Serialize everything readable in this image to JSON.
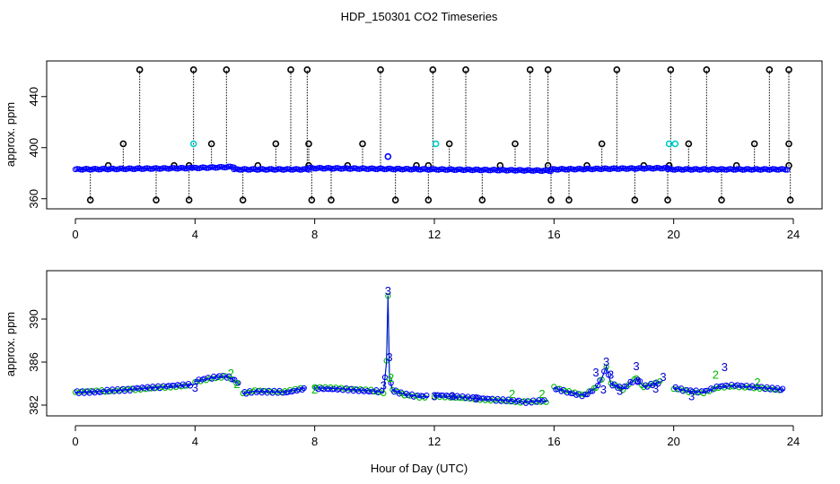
{
  "chart_data": {
    "title": "HDP_150301  CO2 Timeseries",
    "xlabel": "Hour of Day (UTC)",
    "colors": {
      "base": "#000000",
      "median": "#0000ff",
      "flag1": "#00cccc",
      "flag2": "#00bb00",
      "flag3": "#0000cc"
    },
    "panels": [
      {
        "type": "scatter",
        "ylabel": "approx. ppm",
        "xlim": [
          0,
          24
        ],
        "ylim": [
          357,
          463
        ],
        "xticks": [
          0,
          4,
          8,
          12,
          16,
          20,
          24
        ],
        "yticks": [
          360,
          400,
          440
        ],
        "baseline_segments": [
          {
            "x0": 0.0,
            "x1": 3.9,
            "y0": 383,
            "y1": 384
          },
          {
            "x0": 3.9,
            "x1": 5.3,
            "y0": 384,
            "y1": 385
          },
          {
            "x0": 5.3,
            "x1": 7.8,
            "y0": 383,
            "y1": 383
          },
          {
            "x0": 7.8,
            "x1": 11.9,
            "y0": 384,
            "y1": 383
          },
          {
            "x0": 11.9,
            "x1": 15.9,
            "y0": 383,
            "y1": 382
          },
          {
            "x0": 15.9,
            "x1": 19.8,
            "y0": 383,
            "y1": 384
          },
          {
            "x0": 19.8,
            "x1": 23.8,
            "y0": 383,
            "y1": 383
          }
        ],
        "spikes": [
          {
            "x": 2.15,
            "y": 461
          },
          {
            "x": 3.95,
            "y": 461
          },
          {
            "x": 5.05,
            "y": 461
          },
          {
            "x": 7.2,
            "y": 461
          },
          {
            "x": 7.75,
            "y": 461
          },
          {
            "x": 10.2,
            "y": 461
          },
          {
            "x": 11.95,
            "y": 461
          },
          {
            "x": 13.05,
            "y": 461
          },
          {
            "x": 15.2,
            "y": 461
          },
          {
            "x": 15.8,
            "y": 461
          },
          {
            "x": 18.1,
            "y": 461
          },
          {
            "x": 19.9,
            "y": 461
          },
          {
            "x": 21.1,
            "y": 461
          },
          {
            "x": 23.2,
            "y": 461
          },
          {
            "x": 23.85,
            "y": 461
          },
          {
            "x": 1.6,
            "y": 403
          },
          {
            "x": 4.55,
            "y": 403
          },
          {
            "x": 6.7,
            "y": 403
          },
          {
            "x": 7.8,
            "y": 403
          },
          {
            "x": 9.6,
            "y": 403
          },
          {
            "x": 12.5,
            "y": 403
          },
          {
            "x": 14.7,
            "y": 403
          },
          {
            "x": 17.6,
            "y": 403
          },
          {
            "x": 20.5,
            "y": 403
          },
          {
            "x": 22.7,
            "y": 403
          },
          {
            "x": 23.85,
            "y": 403
          },
          {
            "x": 0.5,
            "y": 359
          },
          {
            "x": 2.7,
            "y": 359
          },
          {
            "x": 3.8,
            "y": 359
          },
          {
            "x": 5.6,
            "y": 359
          },
          {
            "x": 7.9,
            "y": 359
          },
          {
            "x": 8.55,
            "y": 359
          },
          {
            "x": 10.7,
            "y": 359
          },
          {
            "x": 11.8,
            "y": 359
          },
          {
            "x": 13.6,
            "y": 359
          },
          {
            "x": 15.9,
            "y": 359
          },
          {
            "x": 16.5,
            "y": 359
          },
          {
            "x": 18.7,
            "y": 359
          },
          {
            "x": 19.8,
            "y": 359
          },
          {
            "x": 21.6,
            "y": 359
          },
          {
            "x": 23.9,
            "y": 359
          },
          {
            "x": 1.1,
            "y": 386
          },
          {
            "x": 3.3,
            "y": 386
          },
          {
            "x": 3.8,
            "y": 386
          },
          {
            "x": 6.1,
            "y": 386
          },
          {
            "x": 7.8,
            "y": 386
          },
          {
            "x": 9.1,
            "y": 386
          },
          {
            "x": 11.4,
            "y": 386
          },
          {
            "x": 11.8,
            "y": 386
          },
          {
            "x": 14.2,
            "y": 386
          },
          {
            "x": 15.8,
            "y": 386
          },
          {
            "x": 17.1,
            "y": 386
          },
          {
            "x": 19.0,
            "y": 386
          },
          {
            "x": 19.85,
            "y": 386
          },
          {
            "x": 22.1,
            "y": 386
          },
          {
            "x": 23.85,
            "y": 386
          }
        ],
        "flagged": [
          {
            "x": 3.95,
            "y": 403
          },
          {
            "x": 12.05,
            "y": 403
          },
          {
            "x": 19.85,
            "y": 403
          },
          {
            "x": 20.05,
            "y": 403
          },
          {
            "x": 10.45,
            "y": 393
          }
        ]
      },
      {
        "type": "line",
        "ylabel": "approx. ppm",
        "xlim": [
          0,
          24
        ],
        "ylim": [
          381.5,
          394
        ],
        "xticks": [
          0,
          4,
          8,
          12,
          16,
          20,
          24
        ],
        "yticks": [
          382,
          386,
          390
        ],
        "segments": [
          {
            "x": [
              0.0,
              1.0,
              2.0,
              3.0,
              3.9
            ],
            "y": [
              383.2,
              383.3,
              383.5,
              383.7,
              383.9
            ]
          },
          {
            "x": [
              4.0,
              4.5,
              5.0,
              5.2,
              5.5
            ],
            "y": [
              384.2,
              384.5,
              384.7,
              384.5,
              383.9
            ]
          },
          {
            "x": [
              5.6,
              6.0,
              7.0,
              7.7
            ],
            "y": [
              383.1,
              383.3,
              383.2,
              383.6
            ]
          },
          {
            "x": [
              8.0,
              9.0,
              10.0,
              10.3,
              10.4,
              10.45,
              10.5,
              10.6,
              11.0,
              11.5,
              11.8
            ],
            "y": [
              383.6,
              383.5,
              383.3,
              383.2,
              386.0,
              392.2,
              384.5,
              383.4,
              383.0,
              382.8,
              382.8
            ]
          },
          {
            "x": [
              12.0,
              13.0,
              14.0,
              15.0,
              15.8
            ],
            "y": [
              382.9,
              382.7,
              382.5,
              382.3,
              382.4
            ]
          },
          {
            "x": [
              16.0,
              16.5,
              17.0,
              17.4,
              17.6,
              17.75,
              17.9,
              18.3,
              18.75,
              19.0,
              19.6
            ],
            "y": [
              383.6,
              383.2,
              382.9,
              383.6,
              384.5,
              385.6,
              384.0,
              383.5,
              384.5,
              383.7,
              384.2
            ]
          },
          {
            "x": [
              20.0,
              20.5,
              21.0,
              21.5,
              22.0,
              22.5,
              23.0,
              23.7
            ],
            "y": [
              383.6,
              383.3,
              383.2,
              383.7,
              383.8,
              383.7,
              383.6,
              383.4
            ]
          }
        ],
        "labels": [
          {
            "x": 10.45,
            "y": 392.6,
            "text": "3"
          },
          {
            "x": 10.5,
            "y": 386.4,
            "text": "3"
          },
          {
            "x": 10.55,
            "y": 384.5,
            "text": "2"
          },
          {
            "x": 10.3,
            "y": 383.8,
            "text": "3"
          },
          {
            "x": 4.0,
            "y": 383.6,
            "text": "3"
          },
          {
            "x": 5.2,
            "y": 384.9,
            "text": "2"
          },
          {
            "x": 5.4,
            "y": 383.9,
            "text": "2"
          },
          {
            "x": 12.0,
            "y": 382.8,
            "text": "3"
          },
          {
            "x": 12.6,
            "y": 382.8,
            "text": "3"
          },
          {
            "x": 13.4,
            "y": 382.6,
            "text": "3"
          },
          {
            "x": 14.6,
            "y": 383.0,
            "text": "2"
          },
          {
            "x": 15.6,
            "y": 383.0,
            "text": "2"
          },
          {
            "x": 17.4,
            "y": 385.0,
            "text": "3"
          },
          {
            "x": 17.75,
            "y": 386.0,
            "text": "3"
          },
          {
            "x": 17.9,
            "y": 384.8,
            "text": "3"
          },
          {
            "x": 17.65,
            "y": 383.4,
            "text": "3"
          },
          {
            "x": 18.2,
            "y": 383.3,
            "text": "3"
          },
          {
            "x": 18.75,
            "y": 385.6,
            "text": "3"
          },
          {
            "x": 18.8,
            "y": 384.2,
            "text": "3"
          },
          {
            "x": 19.4,
            "y": 383.5,
            "text": "3"
          },
          {
            "x": 19.65,
            "y": 384.6,
            "text": "3"
          },
          {
            "x": 21.7,
            "y": 385.5,
            "text": "3"
          },
          {
            "x": 21.4,
            "y": 384.8,
            "text": "2"
          },
          {
            "x": 22.8,
            "y": 384.1,
            "text": "2"
          },
          {
            "x": 20.6,
            "y": 382.8,
            "text": "3"
          },
          {
            "x": 8.0,
            "y": 383.4,
            "text": "2"
          }
        ]
      }
    ]
  }
}
